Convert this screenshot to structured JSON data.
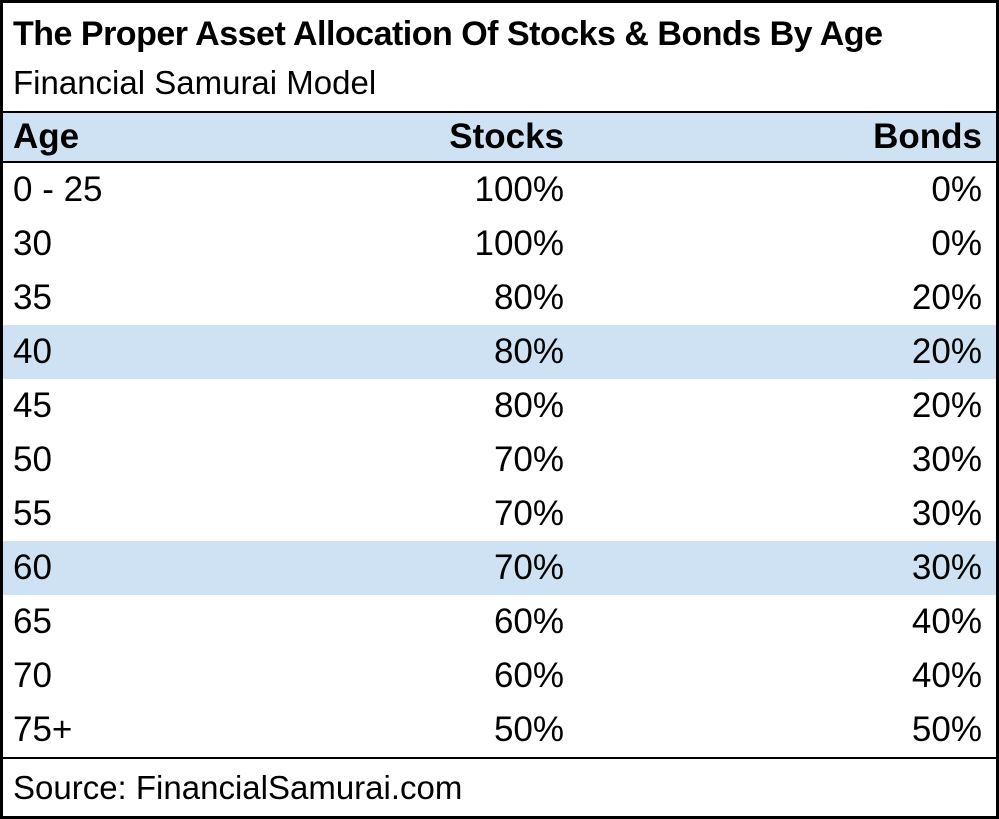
{
  "title": "The Proper Asset Allocation Of Stocks & Bonds By Age",
  "subtitle": "Financial Samurai Model",
  "source": "Source: FinancialSamurai.com",
  "colors": {
    "highlight_blue": "#cfe2f3",
    "border_black": "#000000",
    "background_white": "#ffffff"
  },
  "table": {
    "columns": [
      "Age",
      "Stocks",
      "Bonds"
    ],
    "rows": [
      {
        "age": "0 - 25",
        "stocks": "100%",
        "bonds": "0%",
        "highlighted": false
      },
      {
        "age": "30",
        "stocks": "100%",
        "bonds": "0%",
        "highlighted": false
      },
      {
        "age": "35",
        "stocks": "80%",
        "bonds": "20%",
        "highlighted": false
      },
      {
        "age": "40",
        "stocks": "80%",
        "bonds": "20%",
        "highlighted": true
      },
      {
        "age": "45",
        "stocks": "80%",
        "bonds": "20%",
        "highlighted": false
      },
      {
        "age": "50",
        "stocks": "70%",
        "bonds": "30%",
        "highlighted": false
      },
      {
        "age": "55",
        "stocks": "70%",
        "bonds": "30%",
        "highlighted": false
      },
      {
        "age": "60",
        "stocks": "70%",
        "bonds": "30%",
        "highlighted": true
      },
      {
        "age": "65",
        "stocks": "60%",
        "bonds": "40%",
        "highlighted": false
      },
      {
        "age": "70",
        "stocks": "60%",
        "bonds": "40%",
        "highlighted": false
      },
      {
        "age": "75+",
        "stocks": "50%",
        "bonds": "50%",
        "highlighted": false
      }
    ]
  },
  "chart_data": {
    "type": "table",
    "title": "The Proper Asset Allocation Of Stocks & Bonds By Age",
    "subtitle": "Financial Samurai Model",
    "columns": [
      "Age",
      "Stocks",
      "Bonds"
    ],
    "rows": [
      [
        "0 - 25",
        "100%",
        "0%"
      ],
      [
        "30",
        "100%",
        "0%"
      ],
      [
        "35",
        "80%",
        "20%"
      ],
      [
        "40",
        "80%",
        "20%"
      ],
      [
        "45",
        "80%",
        "20%"
      ],
      [
        "50",
        "70%",
        "30%"
      ],
      [
        "55",
        "70%",
        "30%"
      ],
      [
        "60",
        "70%",
        "30%"
      ],
      [
        "65",
        "60%",
        "40%"
      ],
      [
        "70",
        "60%",
        "40%"
      ],
      [
        "75+",
        "50%",
        "50%"
      ]
    ],
    "highlighted_rows": [
      "40",
      "60"
    ],
    "source": "Source: FinancialSamurai.com"
  }
}
